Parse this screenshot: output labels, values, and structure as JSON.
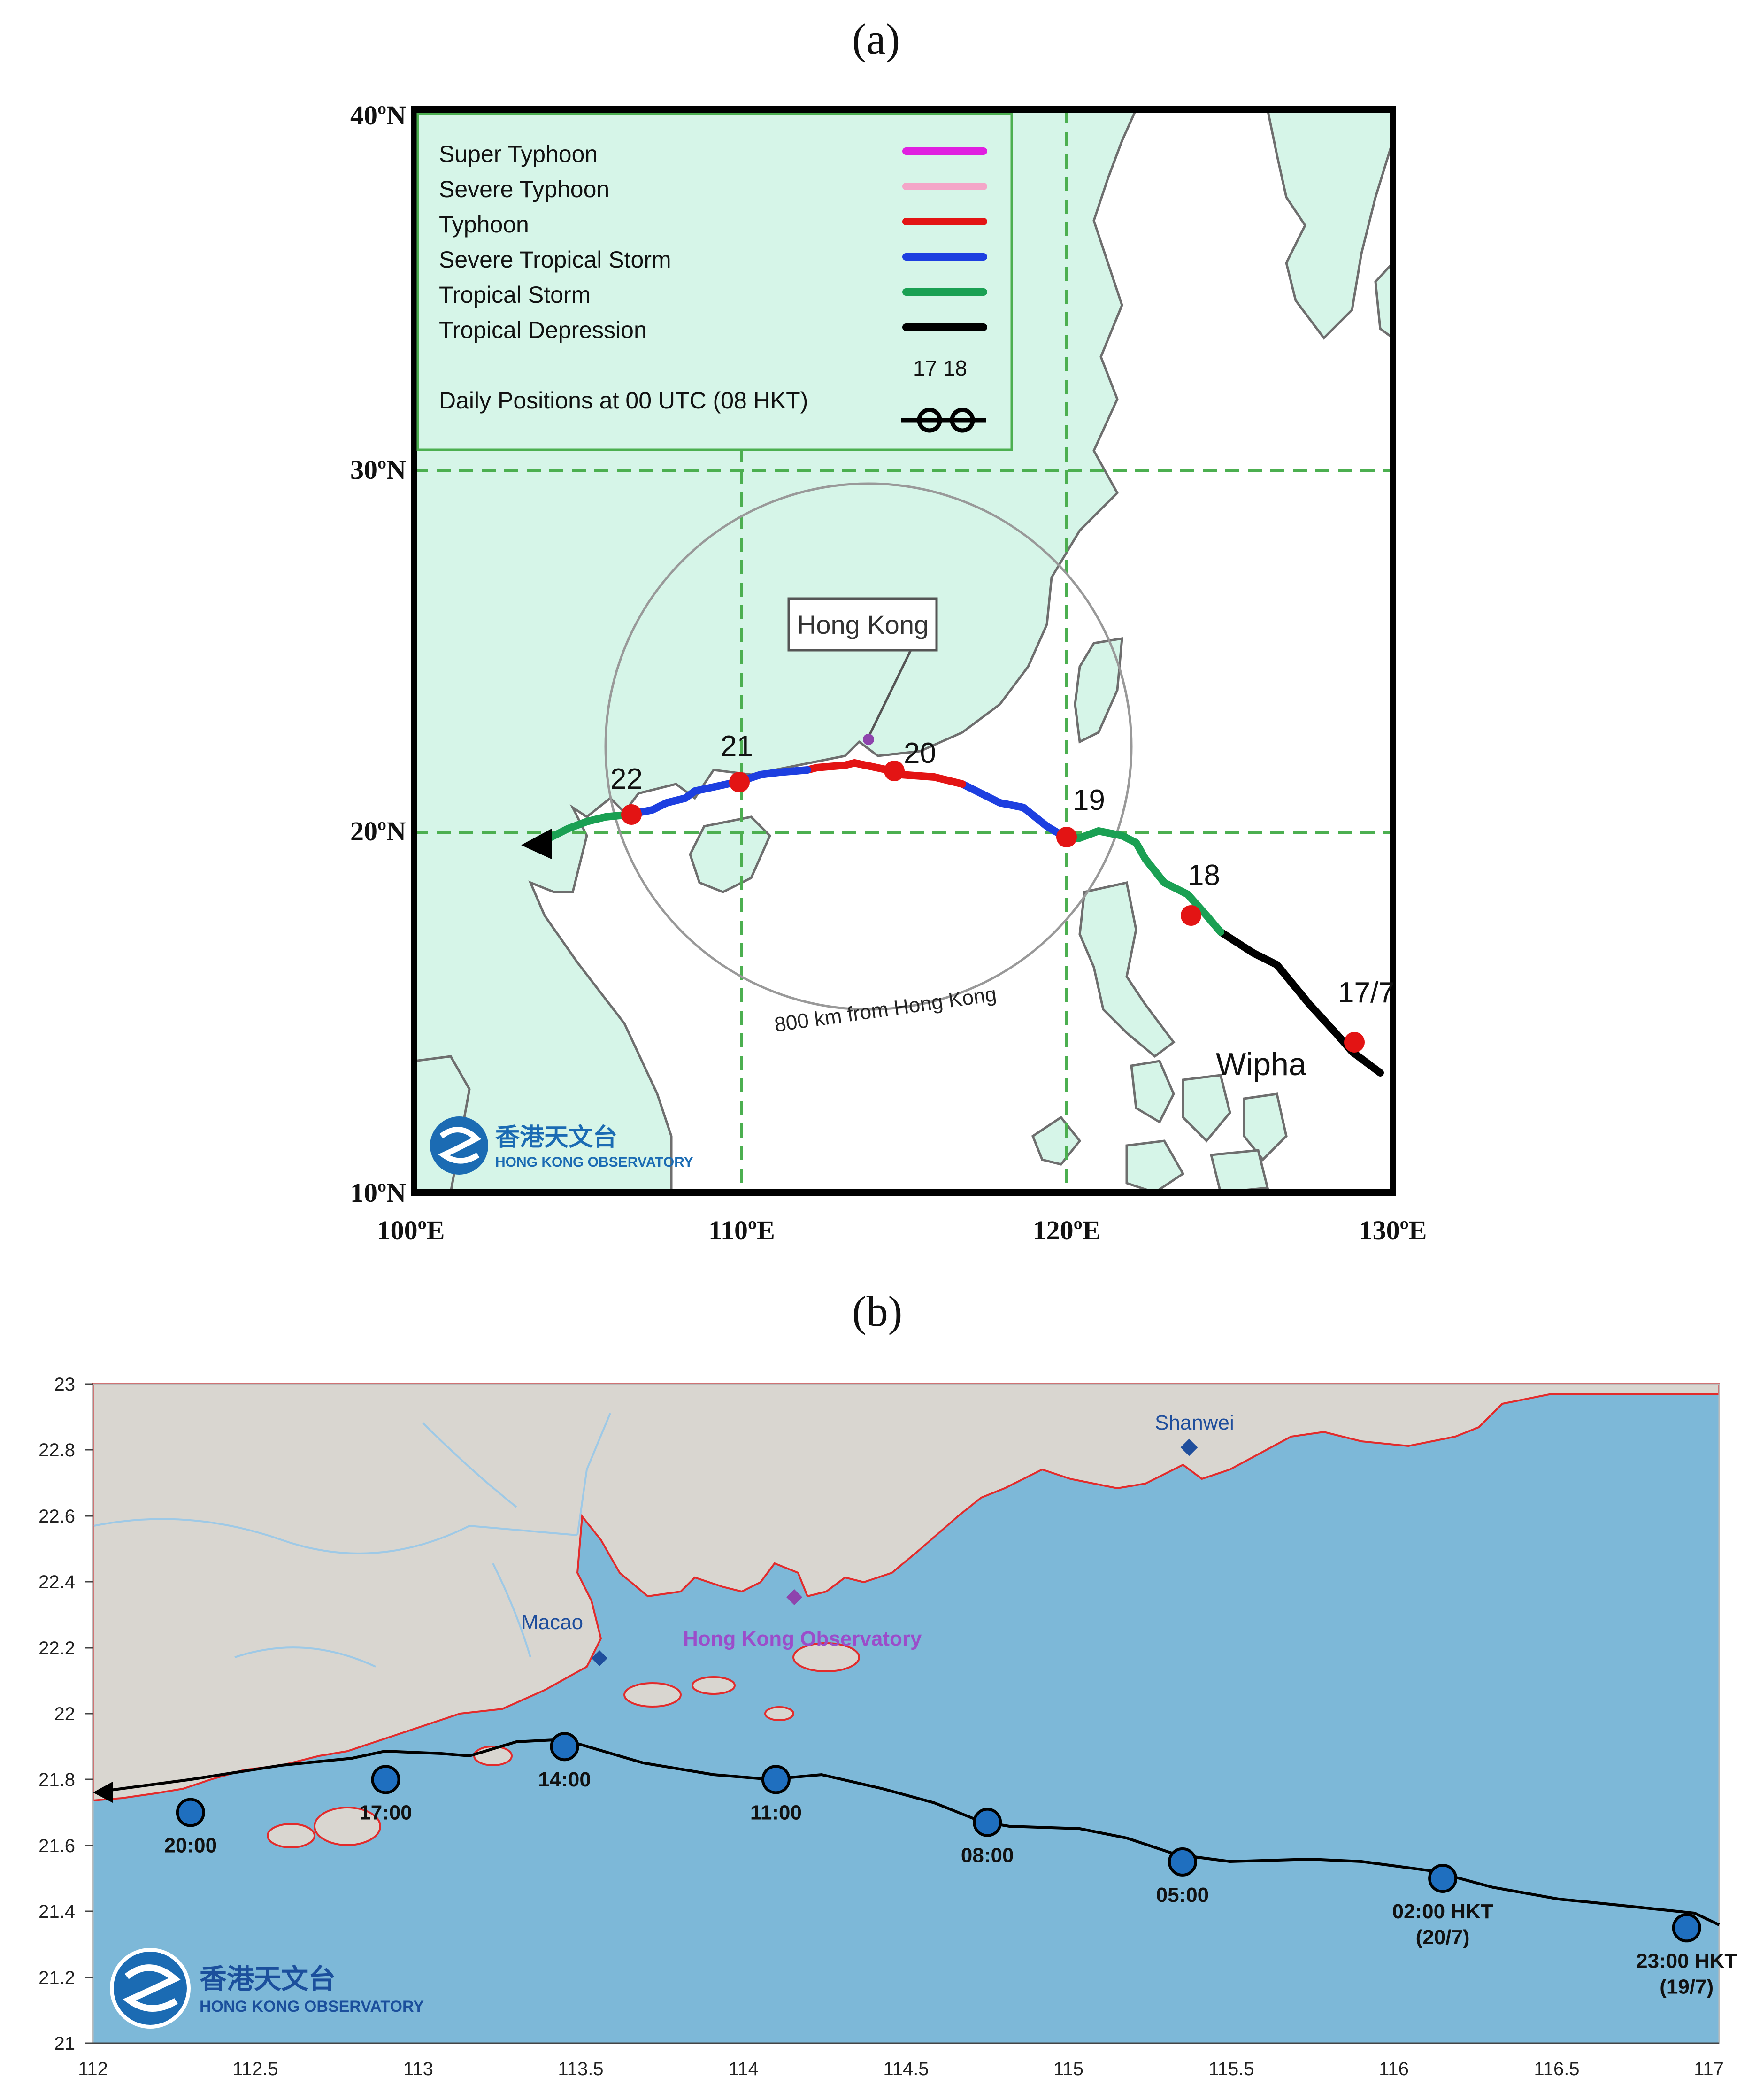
{
  "panel_a": {
    "label": "(a)",
    "lat_labels": [
      "40ºN",
      "30ºN",
      "20ºN",
      "10ºN"
    ],
    "lon_labels": [
      "100ºE",
      "110ºE",
      "120ºE",
      "130ºE"
    ],
    "legend": {
      "items": [
        {
          "label": "Super Typhoon",
          "color": "#e020e0"
        },
        {
          "label": "Severe Typhoon",
          "color": "#f4a6c8"
        },
        {
          "label": "Typhoon",
          "color": "#e31414"
        },
        {
          "label": "Severe Tropical Storm",
          "color": "#1d3fe0"
        },
        {
          "label": "Tropical Storm",
          "color": "#1aa053"
        },
        {
          "label": "Tropical Depression",
          "color": "#000000"
        }
      ],
      "daily_numbers": "17 18",
      "daily_label": "Daily Positions at 00 UTC (08 HKT)",
      "daily_icon": "typhoon-symbol-icon"
    },
    "hk_label": "Hong Kong",
    "circle_label": "800 km from Hong Kong",
    "storm_name": "Wipha",
    "day_labels": [
      "17/7",
      "18",
      "19",
      "20",
      "21",
      "22"
    ],
    "logo": {
      "chinese": "香港天文台",
      "english": "HONG KONG OBSERVATORY"
    }
  },
  "panel_b": {
    "label": "(b)",
    "y_ticks": [
      "23",
      "22.8",
      "22.6",
      "22.4",
      "22.2",
      "22",
      "21.8",
      "21.6",
      "21.4",
      "21.2",
      "21"
    ],
    "x_ticks": [
      "112",
      "112.5",
      "113",
      "113.5",
      "114",
      "114.5",
      "115",
      "115.5",
      "116",
      "116.5",
      "117"
    ],
    "places": {
      "shanwei": "Shanwei",
      "macao": "Macao",
      "hko": "Hong Kong Observatory"
    },
    "track_points": [
      {
        "lon": 116.9,
        "lat": 21.35,
        "label": "23:00 HKT",
        "sub": "(19/7)"
      },
      {
        "lon": 116.15,
        "lat": 21.5,
        "label": "02:00 HKT",
        "sub": "(20/7)"
      },
      {
        "lon": 115.35,
        "lat": 21.55,
        "label": "05:00",
        "sub": ""
      },
      {
        "lon": 114.75,
        "lat": 21.67,
        "label": "08:00",
        "sub": ""
      },
      {
        "lon": 114.1,
        "lat": 21.8,
        "label": "11:00",
        "sub": ""
      },
      {
        "lon": 113.45,
        "lat": 21.9,
        "label": "14:00",
        "sub": ""
      },
      {
        "lon": 112.9,
        "lat": 21.8,
        "label": "17:00",
        "sub": ""
      },
      {
        "lon": 112.3,
        "lat": 21.7,
        "label": "20:00",
        "sub": ""
      }
    ],
    "logo": {
      "chinese": "香港天文台",
      "english": "HONG KONG OBSERVATORY"
    }
  },
  "colors": {
    "sea": "#7db8d8",
    "land_a": "#d6f5e8",
    "land_b": "#d9d6d0",
    "coast_b": "#e32b2b",
    "grid": "#4caf50"
  }
}
